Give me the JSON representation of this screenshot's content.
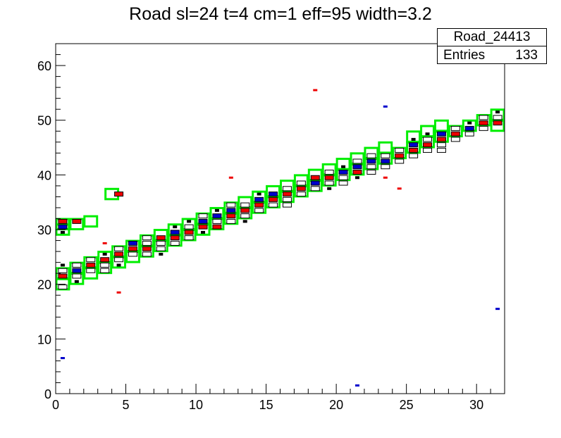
{
  "chart_data": {
    "type": "scatter",
    "title": "Road sl=24 t=4 cm=1 eff=95 width=3.2",
    "xlabel": "",
    "ylabel": "",
    "xlim": [
      0,
      32
    ],
    "ylim": [
      0,
      64
    ],
    "x_ticks": [
      0,
      5,
      10,
      15,
      20,
      25,
      30
    ],
    "y_ticks": [
      0,
      10,
      20,
      30,
      40,
      50,
      60
    ],
    "grid": false,
    "stats_box": {
      "name": "Road_24413",
      "entries_label": "Entries",
      "entries_value": "133"
    },
    "colors": {
      "road_box": "#00ee00",
      "hit_red": "#ee0000",
      "hit_blue": "#0000cc",
      "outline": "#000000"
    },
    "road_boxes": [
      {
        "x": 0.5,
        "y": 20
      },
      {
        "x": 0.5,
        "y": 22
      },
      {
        "x": 1.5,
        "y": 21
      },
      {
        "x": 1.5,
        "y": 23
      },
      {
        "x": 2.5,
        "y": 22
      },
      {
        "x": 2.5,
        "y": 24
      },
      {
        "x": 3.5,
        "y": 23
      },
      {
        "x": 3.5,
        "y": 25
      },
      {
        "x": 4.5,
        "y": 24
      },
      {
        "x": 4.5,
        "y": 26
      },
      {
        "x": 5.5,
        "y": 25
      },
      {
        "x": 5.5,
        "y": 27
      },
      {
        "x": 6.5,
        "y": 26
      },
      {
        "x": 6.5,
        "y": 28
      },
      {
        "x": 7.5,
        "y": 27
      },
      {
        "x": 7.5,
        "y": 29
      },
      {
        "x": 8.5,
        "y": 28
      },
      {
        "x": 8.5,
        "y": 30
      },
      {
        "x": 9.5,
        "y": 29
      },
      {
        "x": 9.5,
        "y": 31
      },
      {
        "x": 10.5,
        "y": 30
      },
      {
        "x": 10.5,
        "y": 32
      },
      {
        "x": 11.5,
        "y": 31
      },
      {
        "x": 11.5,
        "y": 33
      },
      {
        "x": 12.5,
        "y": 32
      },
      {
        "x": 12.5,
        "y": 34
      },
      {
        "x": 13.5,
        "y": 33
      },
      {
        "x": 13.5,
        "y": 35
      },
      {
        "x": 14.5,
        "y": 34
      },
      {
        "x": 14.5,
        "y": 36
      },
      {
        "x": 15.5,
        "y": 35
      },
      {
        "x": 15.5,
        "y": 37
      },
      {
        "x": 16.5,
        "y": 36
      },
      {
        "x": 16.5,
        "y": 38
      },
      {
        "x": 17.5,
        "y": 37
      },
      {
        "x": 17.5,
        "y": 39
      },
      {
        "x": 18.5,
        "y": 38
      },
      {
        "x": 18.5,
        "y": 40
      },
      {
        "x": 19.5,
        "y": 39
      },
      {
        "x": 19.5,
        "y": 41
      },
      {
        "x": 20.5,
        "y": 40
      },
      {
        "x": 20.5,
        "y": 42
      },
      {
        "x": 21.5,
        "y": 41
      },
      {
        "x": 21.5,
        "y": 43
      },
      {
        "x": 22.5,
        "y": 42
      },
      {
        "x": 22.5,
        "y": 44
      },
      {
        "x": 23.5,
        "y": 43
      },
      {
        "x": 23.5,
        "y": 45
      },
      {
        "x": 24.5,
        "y": 44
      },
      {
        "x": 25.5,
        "y": 45
      },
      {
        "x": 25.5,
        "y": 47
      },
      {
        "x": 26.5,
        "y": 46
      },
      {
        "x": 26.5,
        "y": 48
      },
      {
        "x": 27.5,
        "y": 47
      },
      {
        "x": 27.5,
        "y": 49
      },
      {
        "x": 28.5,
        "y": 48
      },
      {
        "x": 29.5,
        "y": 49
      },
      {
        "x": 30.5,
        "y": 50
      },
      {
        "x": 31.5,
        "y": 49
      },
      {
        "x": 31.5,
        "y": 51
      },
      {
        "x": 0.5,
        "y": 30
      },
      {
        "x": 0.5,
        "y": 31
      },
      {
        "x": 1.5,
        "y": 31
      },
      {
        "x": 2.5,
        "y": 31.5
      },
      {
        "x": 4,
        "y": 36.5
      }
    ],
    "hits": [
      {
        "x": 0.5,
        "y": 19.5,
        "c": "w"
      },
      {
        "x": 0.5,
        "y": 21.5,
        "c": "r"
      },
      {
        "x": 0.5,
        "y": 22.5,
        "c": "w"
      },
      {
        "x": 0.5,
        "y": 23.5,
        "c": "k"
      },
      {
        "x": 1.5,
        "y": 20.5,
        "c": "k"
      },
      {
        "x": 1.5,
        "y": 21.5,
        "c": "w"
      },
      {
        "x": 1.5,
        "y": 22.5,
        "c": "b"
      },
      {
        "x": 1.5,
        "y": 23.5,
        "c": "w"
      },
      {
        "x": 2.5,
        "y": 22.5,
        "c": "w"
      },
      {
        "x": 2.5,
        "y": 23.5,
        "c": "r"
      },
      {
        "x": 2.5,
        "y": 24.5,
        "c": "w"
      },
      {
        "x": 3.5,
        "y": 22.5,
        "c": "w"
      },
      {
        "x": 3.5,
        "y": 23.5,
        "c": "w"
      },
      {
        "x": 3.5,
        "y": 24.5,
        "c": "r"
      },
      {
        "x": 3.5,
        "y": 25.5,
        "c": "k"
      },
      {
        "x": 4.5,
        "y": 23.5,
        "c": "k"
      },
      {
        "x": 4.5,
        "y": 24.5,
        "c": "w"
      },
      {
        "x": 4.5,
        "y": 25.5,
        "c": "r"
      },
      {
        "x": 4.5,
        "y": 26.5,
        "c": "w"
      },
      {
        "x": 5.5,
        "y": 25.5,
        "c": "w"
      },
      {
        "x": 5.5,
        "y": 26.5,
        "c": "r"
      },
      {
        "x": 5.5,
        "y": 27.5,
        "c": "b"
      },
      {
        "x": 6.5,
        "y": 25.5,
        "c": "w"
      },
      {
        "x": 6.5,
        "y": 26.5,
        "c": "r"
      },
      {
        "x": 6.5,
        "y": 27.5,
        "c": "w"
      },
      {
        "x": 6.5,
        "y": 28.5,
        "c": "w"
      },
      {
        "x": 7.5,
        "y": 25.5,
        "c": "k"
      },
      {
        "x": 7.5,
        "y": 26.5,
        "c": "w"
      },
      {
        "x": 7.5,
        "y": 27.5,
        "c": "w"
      },
      {
        "x": 7.5,
        "y": 28.5,
        "c": "r"
      },
      {
        "x": 8.5,
        "y": 27.5,
        "c": "w"
      },
      {
        "x": 8.5,
        "y": 28.5,
        "c": "r"
      },
      {
        "x": 8.5,
        "y": 29.5,
        "c": "b"
      },
      {
        "x": 8.5,
        "y": 30.5,
        "c": "k"
      },
      {
        "x": 9.5,
        "y": 28.5,
        "c": "w"
      },
      {
        "x": 9.5,
        "y": 29.5,
        "c": "r"
      },
      {
        "x": 9.5,
        "y": 30.5,
        "c": "w"
      },
      {
        "x": 9.5,
        "y": 31.5,
        "c": "k"
      },
      {
        "x": 10.5,
        "y": 29.5,
        "c": "k"
      },
      {
        "x": 10.5,
        "y": 30.5,
        "c": "r"
      },
      {
        "x": 10.5,
        "y": 31.5,
        "c": "b"
      },
      {
        "x": 10.5,
        "y": 32.5,
        "c": "w"
      },
      {
        "x": 11.5,
        "y": 30.5,
        "c": "r"
      },
      {
        "x": 11.5,
        "y": 31.5,
        "c": "w"
      },
      {
        "x": 11.5,
        "y": 32.5,
        "c": "b"
      },
      {
        "x": 11.5,
        "y": 33.5,
        "c": "k"
      },
      {
        "x": 12.5,
        "y": 31.5,
        "c": "w"
      },
      {
        "x": 12.5,
        "y": 32.5,
        "c": "r"
      },
      {
        "x": 12.5,
        "y": 33.5,
        "c": "b"
      },
      {
        "x": 12.5,
        "y": 34.5,
        "c": "w"
      },
      {
        "x": 13.5,
        "y": 31.5,
        "c": "k"
      },
      {
        "x": 13.5,
        "y": 32.5,
        "c": "w"
      },
      {
        "x": 13.5,
        "y": 33.5,
        "c": "r"
      },
      {
        "x": 13.5,
        "y": 34.5,
        "c": "w"
      },
      {
        "x": 14.5,
        "y": 33.5,
        "c": "w"
      },
      {
        "x": 14.5,
        "y": 34.5,
        "c": "r"
      },
      {
        "x": 14.5,
        "y": 35.5,
        "c": "b"
      },
      {
        "x": 14.5,
        "y": 36.5,
        "c": "k"
      },
      {
        "x": 15.5,
        "y": 34.5,
        "c": "w"
      },
      {
        "x": 15.5,
        "y": 35.5,
        "c": "r"
      },
      {
        "x": 15.5,
        "y": 36.5,
        "c": "b"
      },
      {
        "x": 16.5,
        "y": 34.5,
        "c": "w"
      },
      {
        "x": 16.5,
        "y": 35.5,
        "c": "w"
      },
      {
        "x": 16.5,
        "y": 36.5,
        "c": "r"
      },
      {
        "x": 16.5,
        "y": 37.5,
        "c": "w"
      },
      {
        "x": 17.5,
        "y": 36.5,
        "c": "w"
      },
      {
        "x": 17.5,
        "y": 37.5,
        "c": "r"
      },
      {
        "x": 17.5,
        "y": 38.5,
        "c": "w"
      },
      {
        "x": 18.5,
        "y": 37.5,
        "c": "w"
      },
      {
        "x": 18.5,
        "y": 38.5,
        "c": "b"
      },
      {
        "x": 18.5,
        "y": 39.5,
        "c": "r"
      },
      {
        "x": 19.5,
        "y": 37.5,
        "c": "k"
      },
      {
        "x": 19.5,
        "y": 38.5,
        "c": "w"
      },
      {
        "x": 19.5,
        "y": 39.5,
        "c": "r"
      },
      {
        "x": 19.5,
        "y": 40.5,
        "c": "w"
      },
      {
        "x": 20.5,
        "y": 38.5,
        "c": "w"
      },
      {
        "x": 20.5,
        "y": 39.5,
        "c": "w"
      },
      {
        "x": 20.5,
        "y": 40.5,
        "c": "b"
      },
      {
        "x": 20.5,
        "y": 41.5,
        "c": "k"
      },
      {
        "x": 21.5,
        "y": 39.5,
        "c": "k"
      },
      {
        "x": 21.5,
        "y": 40.5,
        "c": "r"
      },
      {
        "x": 21.5,
        "y": 41.5,
        "c": "b"
      },
      {
        "x": 21.5,
        "y": 42.5,
        "c": "w"
      },
      {
        "x": 22.5,
        "y": 40.5,
        "c": "w"
      },
      {
        "x": 22.5,
        "y": 41.5,
        "c": "w"
      },
      {
        "x": 22.5,
        "y": 42.5,
        "c": "b"
      },
      {
        "x": 22.5,
        "y": 43.5,
        "c": "w"
      },
      {
        "x": 23.5,
        "y": 41.5,
        "c": "w"
      },
      {
        "x": 23.5,
        "y": 42.5,
        "c": "b"
      },
      {
        "x": 23.5,
        "y": 43.5,
        "c": "w"
      },
      {
        "x": 24.5,
        "y": 42.5,
        "c": "w"
      },
      {
        "x": 24.5,
        "y": 43.5,
        "c": "r"
      },
      {
        "x": 24.5,
        "y": 44.5,
        "c": "w"
      },
      {
        "x": 25.5,
        "y": 43.5,
        "c": "w"
      },
      {
        "x": 25.5,
        "y": 44.5,
        "c": "r"
      },
      {
        "x": 25.5,
        "y": 45.5,
        "c": "b"
      },
      {
        "x": 25.5,
        "y": 46.5,
        "c": "k"
      },
      {
        "x": 26.5,
        "y": 44.5,
        "c": "w"
      },
      {
        "x": 26.5,
        "y": 45.5,
        "c": "r"
      },
      {
        "x": 26.5,
        "y": 46.5,
        "c": "w"
      },
      {
        "x": 26.5,
        "y": 47.5,
        "c": "k"
      },
      {
        "x": 27.5,
        "y": 44.5,
        "c": "w"
      },
      {
        "x": 27.5,
        "y": 45.5,
        "c": "w"
      },
      {
        "x": 27.5,
        "y": 46.5,
        "c": "r"
      },
      {
        "x": 27.5,
        "y": 47.5,
        "c": "b"
      },
      {
        "x": 28.5,
        "y": 46.5,
        "c": "w"
      },
      {
        "x": 28.5,
        "y": 47.5,
        "c": "r"
      },
      {
        "x": 28.5,
        "y": 48.5,
        "c": "w"
      },
      {
        "x": 29.5,
        "y": 47.5,
        "c": "w"
      },
      {
        "x": 29.5,
        "y": 48.5,
        "c": "b"
      },
      {
        "x": 29.5,
        "y": 49.5,
        "c": "k"
      },
      {
        "x": 30.5,
        "y": 48.5,
        "c": "w"
      },
      {
        "x": 30.5,
        "y": 49.5,
        "c": "r"
      },
      {
        "x": 30.5,
        "y": 50.5,
        "c": "w"
      },
      {
        "x": 31.5,
        "y": 49.5,
        "c": "r"
      },
      {
        "x": 31.5,
        "y": 50.5,
        "c": "w"
      },
      {
        "x": 31.5,
        "y": 51.5,
        "c": "k"
      },
      {
        "x": 0.5,
        "y": 29.5,
        "c": "k"
      },
      {
        "x": 0.5,
        "y": 30.5,
        "c": "b"
      },
      {
        "x": 0.5,
        "y": 31.5,
        "c": "r"
      },
      {
        "x": 1.5,
        "y": 31.5,
        "c": "r"
      },
      {
        "x": 4.5,
        "y": 36.5,
        "c": "r"
      },
      {
        "x": 0.5,
        "y": 6.5,
        "c": "b"
      },
      {
        "x": 3.5,
        "y": 27.5,
        "c": "r"
      },
      {
        "x": 4.5,
        "y": 18.5,
        "c": "r"
      },
      {
        "x": 12.5,
        "y": 39.5,
        "c": "r"
      },
      {
        "x": 18.5,
        "y": 55.5,
        "c": "r"
      },
      {
        "x": 21.5,
        "y": 1.5,
        "c": "b"
      },
      {
        "x": 23.5,
        "y": 52.5,
        "c": "b"
      },
      {
        "x": 23.5,
        "y": 39.5,
        "c": "r"
      },
      {
        "x": 24.5,
        "y": 37.5,
        "c": "r"
      },
      {
        "x": 31.5,
        "y": 15.5,
        "c": "b"
      }
    ]
  }
}
